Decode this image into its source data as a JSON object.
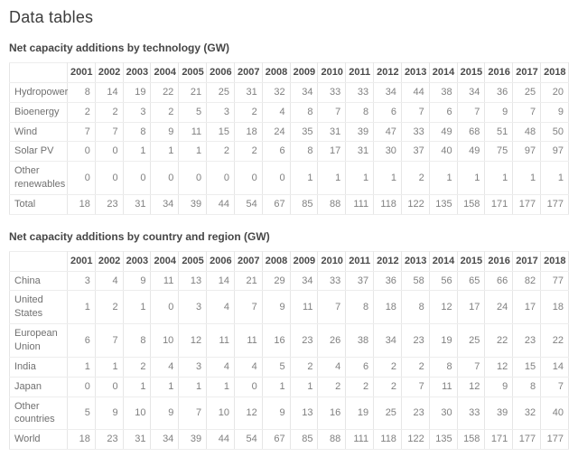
{
  "page": {
    "title": "Data tables"
  },
  "colors": {
    "background": "#ffffff",
    "heading_text": "#3d3d3d",
    "section_heading_text": "#464646",
    "column_header_text": "#4a4a4a",
    "row_label_text": "#707070",
    "value_text": "#808080",
    "table_border": "#e6e6e6"
  },
  "chart_data": [
    {
      "type": "table",
      "title": "Net capacity additions by technology (GW)",
      "columns": [
        "2001",
        "2002",
        "2003",
        "2004",
        "2005",
        "2006",
        "2007",
        "2008",
        "2009",
        "2010",
        "2011",
        "2012",
        "2013",
        "2014",
        "2015",
        "2016",
        "2017",
        "2018"
      ],
      "rows": [
        {
          "label": "Hydropower",
          "values": [
            8,
            14,
            19,
            22,
            21,
            25,
            31,
            32,
            34,
            33,
            33,
            34,
            44,
            38,
            34,
            36,
            25,
            20
          ]
        },
        {
          "label": "Bioenergy",
          "values": [
            2,
            2,
            3,
            2,
            5,
            3,
            2,
            4,
            8,
            7,
            8,
            6,
            7,
            6,
            7,
            9,
            7,
            9
          ]
        },
        {
          "label": "Wind",
          "values": [
            7,
            7,
            8,
            9,
            11,
            15,
            18,
            24,
            35,
            31,
            39,
            47,
            33,
            49,
            68,
            51,
            48,
            50
          ]
        },
        {
          "label": "Solar PV",
          "values": [
            0,
            0,
            1,
            1,
            1,
            2,
            2,
            6,
            8,
            17,
            31,
            30,
            37,
            40,
            49,
            75,
            97,
            97
          ]
        },
        {
          "label": "Other renewables",
          "values": [
            0,
            0,
            0,
            0,
            0,
            0,
            0,
            0,
            1,
            1,
            1,
            1,
            2,
            1,
            1,
            1,
            1,
            1
          ]
        },
        {
          "label": "Total",
          "values": [
            18,
            23,
            31,
            34,
            39,
            44,
            54,
            67,
            85,
            88,
            111,
            118,
            122,
            135,
            158,
            171,
            177,
            177
          ]
        }
      ]
    },
    {
      "type": "table",
      "title": "Net capacity additions by country and region (GW)",
      "columns": [
        "2001",
        "2002",
        "2003",
        "2004",
        "2005",
        "2006",
        "2007",
        "2008",
        "2009",
        "2010",
        "2011",
        "2012",
        "2013",
        "2014",
        "2015",
        "2016",
        "2017",
        "2018"
      ],
      "rows": [
        {
          "label": "China",
          "values": [
            3,
            4,
            9,
            11,
            13,
            14,
            21,
            29,
            34,
            33,
            37,
            36,
            58,
            56,
            65,
            66,
            82,
            77
          ]
        },
        {
          "label": "United States",
          "values": [
            1,
            2,
            1,
            0,
            3,
            4,
            7,
            9,
            11,
            7,
            8,
            18,
            8,
            12,
            17,
            24,
            17,
            18
          ]
        },
        {
          "label": "European Union",
          "values": [
            6,
            7,
            8,
            10,
            12,
            11,
            11,
            16,
            23,
            26,
            38,
            34,
            23,
            19,
            25,
            22,
            23,
            22
          ]
        },
        {
          "label": "India",
          "values": [
            1,
            1,
            2,
            4,
            3,
            4,
            4,
            5,
            2,
            4,
            6,
            2,
            2,
            8,
            7,
            12,
            15,
            14
          ]
        },
        {
          "label": "Japan",
          "values": [
            0,
            0,
            1,
            1,
            1,
            1,
            0,
            1,
            1,
            2,
            2,
            2,
            7,
            11,
            12,
            9,
            8,
            7
          ]
        },
        {
          "label": "Other countries",
          "values": [
            5,
            9,
            10,
            9,
            7,
            10,
            12,
            9,
            13,
            16,
            19,
            25,
            23,
            30,
            33,
            39,
            32,
            40
          ]
        },
        {
          "label": "World",
          "values": [
            18,
            23,
            31,
            34,
            39,
            44,
            54,
            67,
            85,
            88,
            111,
            118,
            122,
            135,
            158,
            171,
            177,
            177
          ]
        }
      ]
    }
  ]
}
